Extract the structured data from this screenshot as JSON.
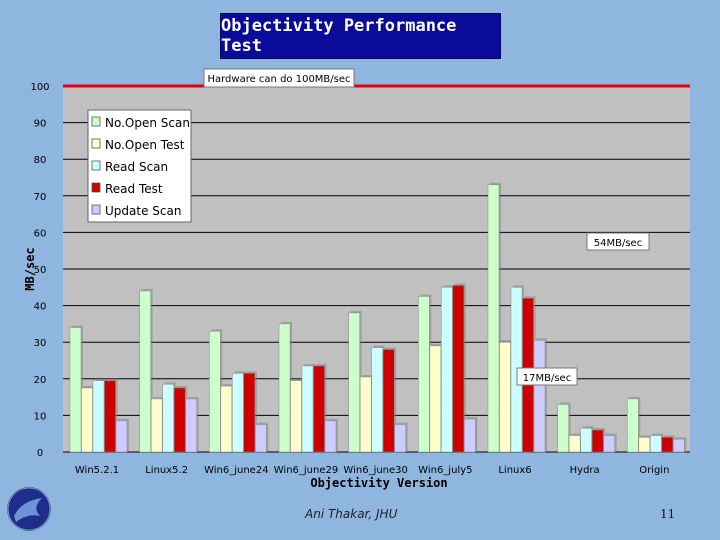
{
  "slide": {
    "title": "Objectivity Performance Test",
    "author": "Ani Thakar, JHU",
    "page_number": "11"
  },
  "colors": {
    "background": "#8fb6df",
    "plot_area": "#c0c0c0",
    "title_box": "#0b0b9a",
    "reference_line": "#e2001a"
  },
  "chart_data": {
    "type": "bar",
    "xlabel": "Objectivity Version",
    "ylabel": "MB/sec",
    "ylim": [
      0,
      100
    ],
    "yticks": [
      0,
      10,
      20,
      30,
      40,
      50,
      60,
      70,
      80,
      90,
      100
    ],
    "grid": true,
    "legend_position": "top-left",
    "categories": [
      "Win5.2.1",
      "Linux5.2",
      "Win6_june24",
      "Win6_june29",
      "Win6_june30",
      "Win6_july5",
      "Linux6",
      "Hydra",
      "Origin"
    ],
    "series": [
      {
        "name": "No.Open Scan",
        "color": "#ccffcc",
        "values": [
          34,
          44,
          33,
          35,
          38,
          42.5,
          73,
          13,
          14.5
        ]
      },
      {
        "name": "No.Open Test",
        "color": "#ffffcc",
        "values": [
          17.5,
          14.5,
          18,
          19.5,
          20.5,
          29,
          30,
          4.5,
          4
        ]
      },
      {
        "name": "Read Scan",
        "color": "#ccffff",
        "values": [
          19.5,
          18.5,
          21.5,
          23.5,
          28.5,
          45,
          45,
          6.5,
          4.5
        ]
      },
      {
        "name": "Read Test",
        "color": "#cc0000",
        "values": [
          19.5,
          17.5,
          21.5,
          23.5,
          28,
          45.5,
          42,
          6,
          4
        ]
      },
      {
        "name": "Update Scan",
        "color": "#ccccff",
        "values": [
          8.5,
          14.5,
          7.5,
          8.5,
          7.5,
          9,
          30.5,
          4.5,
          3.5
        ]
      }
    ],
    "reference_line": {
      "value": 100,
      "label": "Hardware can do 100MB/sec"
    },
    "annotations": [
      {
        "label": "54MB/sec",
        "value": 55
      },
      {
        "label": "17MB/sec",
        "value": 20
      }
    ]
  }
}
